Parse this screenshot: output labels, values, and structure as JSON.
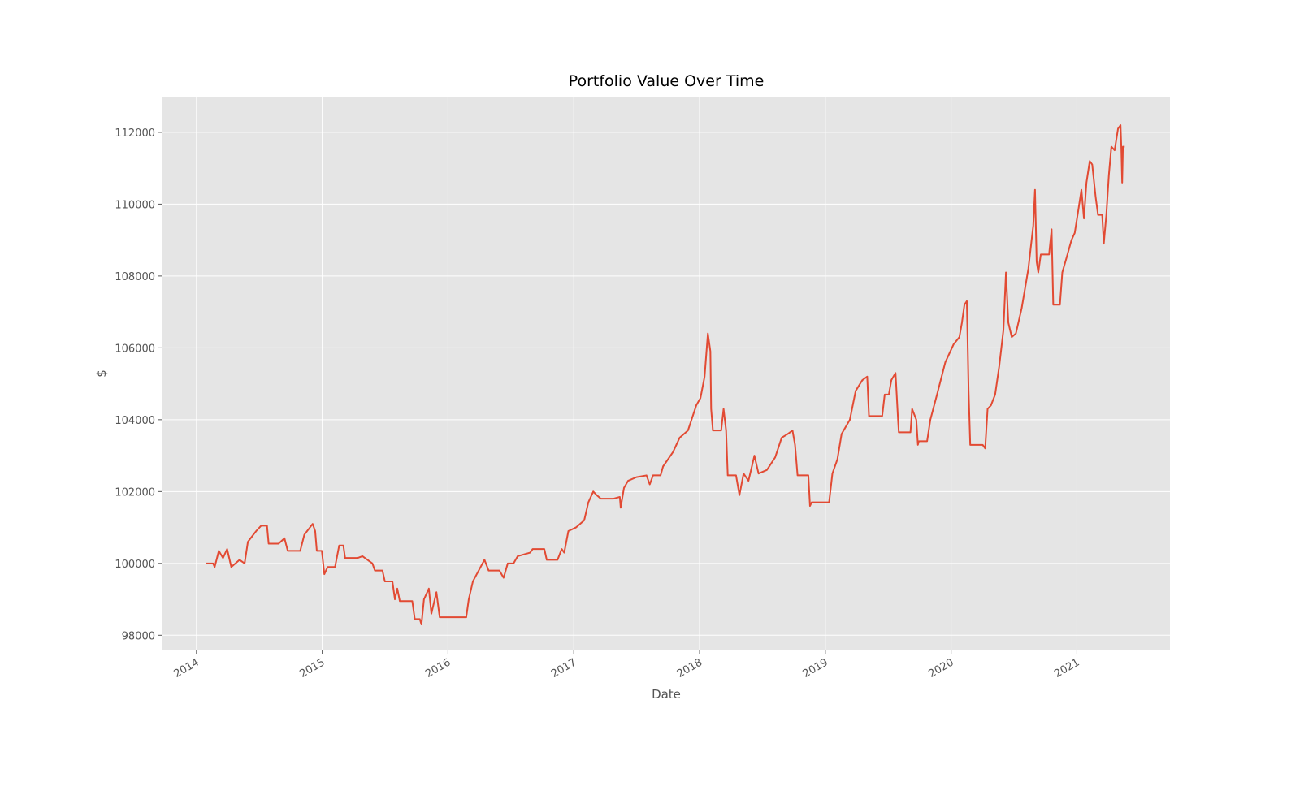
{
  "chart_data": {
    "type": "line",
    "title": "Portfolio Value Over Time",
    "x_label": "Date",
    "y_label": "$",
    "xlim": [
      2013.73,
      2021.74
    ],
    "xticks": [
      2014,
      2015,
      2016,
      2017,
      2018,
      2019,
      2020,
      2021
    ],
    "ylim": [
      97600,
      112970
    ],
    "yticks": [
      98000,
      100000,
      102000,
      104000,
      106000,
      108000,
      110000,
      112000
    ],
    "grid": true,
    "background": "#e5e5e5",
    "series": [
      {
        "color": "#e24a33",
        "x": [
          2014.079,
          2014.132,
          2014.145,
          2014.178,
          2014.211,
          2014.244,
          2014.277,
          2014.343,
          2014.383,
          2014.409,
          2014.475,
          2014.515,
          2014.561,
          2014.574,
          2014.653,
          2014.7,
          2014.726,
          2014.825,
          2014.858,
          2014.924,
          2014.944,
          2014.957,
          2014.997,
          2015.017,
          2015.043,
          2015.102,
          2015.135,
          2015.168,
          2015.182,
          2015.281,
          2015.32,
          2015.399,
          2015.419,
          2015.479,
          2015.498,
          2015.558,
          2015.578,
          2015.597,
          2015.617,
          2015.716,
          2015.736,
          2015.776,
          2015.789,
          2015.809,
          2015.848,
          2015.868,
          2015.908,
          2015.934,
          2016.145,
          2016.165,
          2016.198,
          2016.244,
          2016.29,
          2016.323,
          2016.409,
          2016.442,
          2016.475,
          2016.521,
          2016.554,
          2016.653,
          2016.673,
          2016.766,
          2016.785,
          2016.871,
          2016.904,
          2016.924,
          2016.957,
          2017.017,
          2017.083,
          2017.116,
          2017.155,
          2017.182,
          2017.215,
          2017.314,
          2017.366,
          2017.373,
          2017.399,
          2017.432,
          2017.498,
          2017.578,
          2017.604,
          2017.63,
          2017.69,
          2017.71,
          2017.789,
          2017.842,
          2017.908,
          2017.974,
          2018.007,
          2018.04,
          2018.066,
          2018.086,
          2018.092,
          2018.106,
          2018.172,
          2018.191,
          2018.211,
          2018.224,
          2018.29,
          2018.317,
          2018.35,
          2018.389,
          2018.436,
          2018.469,
          2018.535,
          2018.601,
          2018.653,
          2018.7,
          2018.739,
          2018.759,
          2018.779,
          2018.865,
          2018.878,
          2018.891,
          2019.03,
          2019.056,
          2019.096,
          2019.129,
          2019.195,
          2019.241,
          2019.294,
          2019.333,
          2019.347,
          2019.452,
          2019.472,
          2019.505,
          2019.525,
          2019.558,
          2019.578,
          2019.584,
          2019.677,
          2019.69,
          2019.723,
          2019.736,
          2019.743,
          2019.809,
          2019.835,
          2019.888,
          2019.954,
          2020.02,
          2020.066,
          2020.086,
          2020.106,
          2020.125,
          2020.139,
          2020.152,
          2020.251,
          2020.271,
          2020.29,
          2020.317,
          2020.35,
          2020.383,
          2020.416,
          2020.436,
          2020.455,
          2020.482,
          2020.515,
          2020.561,
          2020.614,
          2020.653,
          2020.667,
          2020.68,
          2020.693,
          2020.713,
          2020.779,
          2020.799,
          2020.812,
          2020.865,
          2020.884,
          2020.917,
          2020.957,
          2020.983,
          2021.01,
          2021.036,
          2021.056,
          2021.076,
          2021.102,
          2021.122,
          2021.149,
          2021.168,
          2021.201,
          2021.214,
          2021.234,
          2021.254,
          2021.274,
          2021.3,
          2021.327,
          2021.347,
          2021.353,
          2021.36,
          2021.366,
          2021.38
        ],
        "values": [
          100000,
          100000,
          99900,
          100350,
          100150,
          100400,
          99900,
          100100,
          100000,
          100600,
          100900,
          101050,
          101050,
          100550,
          100550,
          100700,
          100350,
          100350,
          100800,
          101100,
          100900,
          100350,
          100350,
          99700,
          99900,
          99900,
          100500,
          100500,
          100150,
          100150,
          100200,
          100000,
          99800,
          99800,
          99500,
          99500,
          99000,
          99300,
          98950,
          98950,
          98450,
          98450,
          98300,
          99000,
          99300,
          98600,
          99200,
          98500,
          98500,
          99000,
          99500,
          99800,
          100100,
          99800,
          99800,
          99600,
          100000,
          100000,
          100200,
          100300,
          100400,
          100400,
          100100,
          100100,
          100400,
          100300,
          100900,
          101000,
          101200,
          101700,
          102000,
          101900,
          101800,
          101800,
          101850,
          101550,
          102100,
          102300,
          102400,
          102450,
          102200,
          102450,
          102450,
          102700,
          103100,
          103500,
          103700,
          104400,
          104600,
          105200,
          106400,
          105900,
          104300,
          103700,
          103700,
          104300,
          103700,
          102450,
          102450,
          101900,
          102500,
          102300,
          103000,
          102500,
          102600,
          102950,
          103500,
          103600,
          103700,
          103300,
          102450,
          102450,
          101600,
          101700,
          101700,
          102500,
          102900,
          103600,
          104000,
          104800,
          105100,
          105200,
          104100,
          104100,
          104700,
          104700,
          105100,
          105300,
          104000,
          103650,
          103650,
          104300,
          104000,
          103300,
          103400,
          103400,
          104000,
          104700,
          105600,
          106100,
          106300,
          106700,
          107200,
          107300,
          104800,
          103300,
          103300,
          103200,
          104300,
          104400,
          104700,
          105500,
          106500,
          108100,
          106700,
          106300,
          106400,
          107100,
          108200,
          109400,
          110400,
          108400,
          108100,
          108600,
          108600,
          109300,
          107200,
          107200,
          108100,
          108500,
          109000,
          109200,
          109800,
          110400,
          109600,
          110600,
          111200,
          111100,
          110200,
          109700,
          109700,
          108900,
          109700,
          110800,
          111600,
          111500,
          112100,
          112200,
          111600,
          110600,
          111600,
          111600
        ]
      }
    ]
  }
}
